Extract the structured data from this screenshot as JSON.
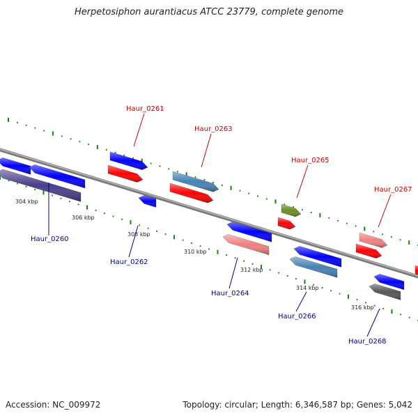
{
  "title": "Herpetosiphon aurantiacus ATCC 23779, complete genome",
  "footer": {
    "accession": "Accession: NC_009972",
    "summary": "Topology: circular; Length: 6,346,587 bp; Genes: 5,042"
  },
  "ticks": [
    {
      "label": "304 kbp"
    },
    {
      "label": "306 kbp"
    },
    {
      "label": "308 kbp"
    },
    {
      "label": "310 kbp"
    },
    {
      "label": "312 kbp"
    },
    {
      "label": "314 kbp"
    },
    {
      "label": "316 kbp"
    }
  ],
  "gene_labels": [
    {
      "name": "Haur_0260",
      "strand": "minus",
      "color": "#00008b"
    },
    {
      "name": "Haur_0261",
      "strand": "plus",
      "color": "#cc0000"
    },
    {
      "name": "Haur_0262",
      "strand": "minus",
      "color": "#00008b"
    },
    {
      "name": "Haur_0263",
      "strand": "plus",
      "color": "#cc0000"
    },
    {
      "name": "Haur_0264",
      "strand": "minus",
      "color": "#00008b"
    },
    {
      "name": "Haur_0265",
      "strand": "plus",
      "color": "#cc0000"
    },
    {
      "name": "Haur_0266",
      "strand": "minus",
      "color": "#00008b"
    },
    {
      "name": "Haur_0267",
      "strand": "plus",
      "color": "#cc0000"
    },
    {
      "name": "Haur_0268",
      "strand": "minus",
      "color": "#00008b"
    }
  ],
  "colors": {
    "cds_forward": "#ff0000",
    "cds_reverse": "#0000ff",
    "light_red": "#f08080",
    "steel_blue": "#4682b4",
    "olive": "#6b8e23",
    "slate": "#483d8b",
    "gray": "#555555",
    "backbone": "#888888",
    "tick_dots": "#0a8a0a"
  }
}
